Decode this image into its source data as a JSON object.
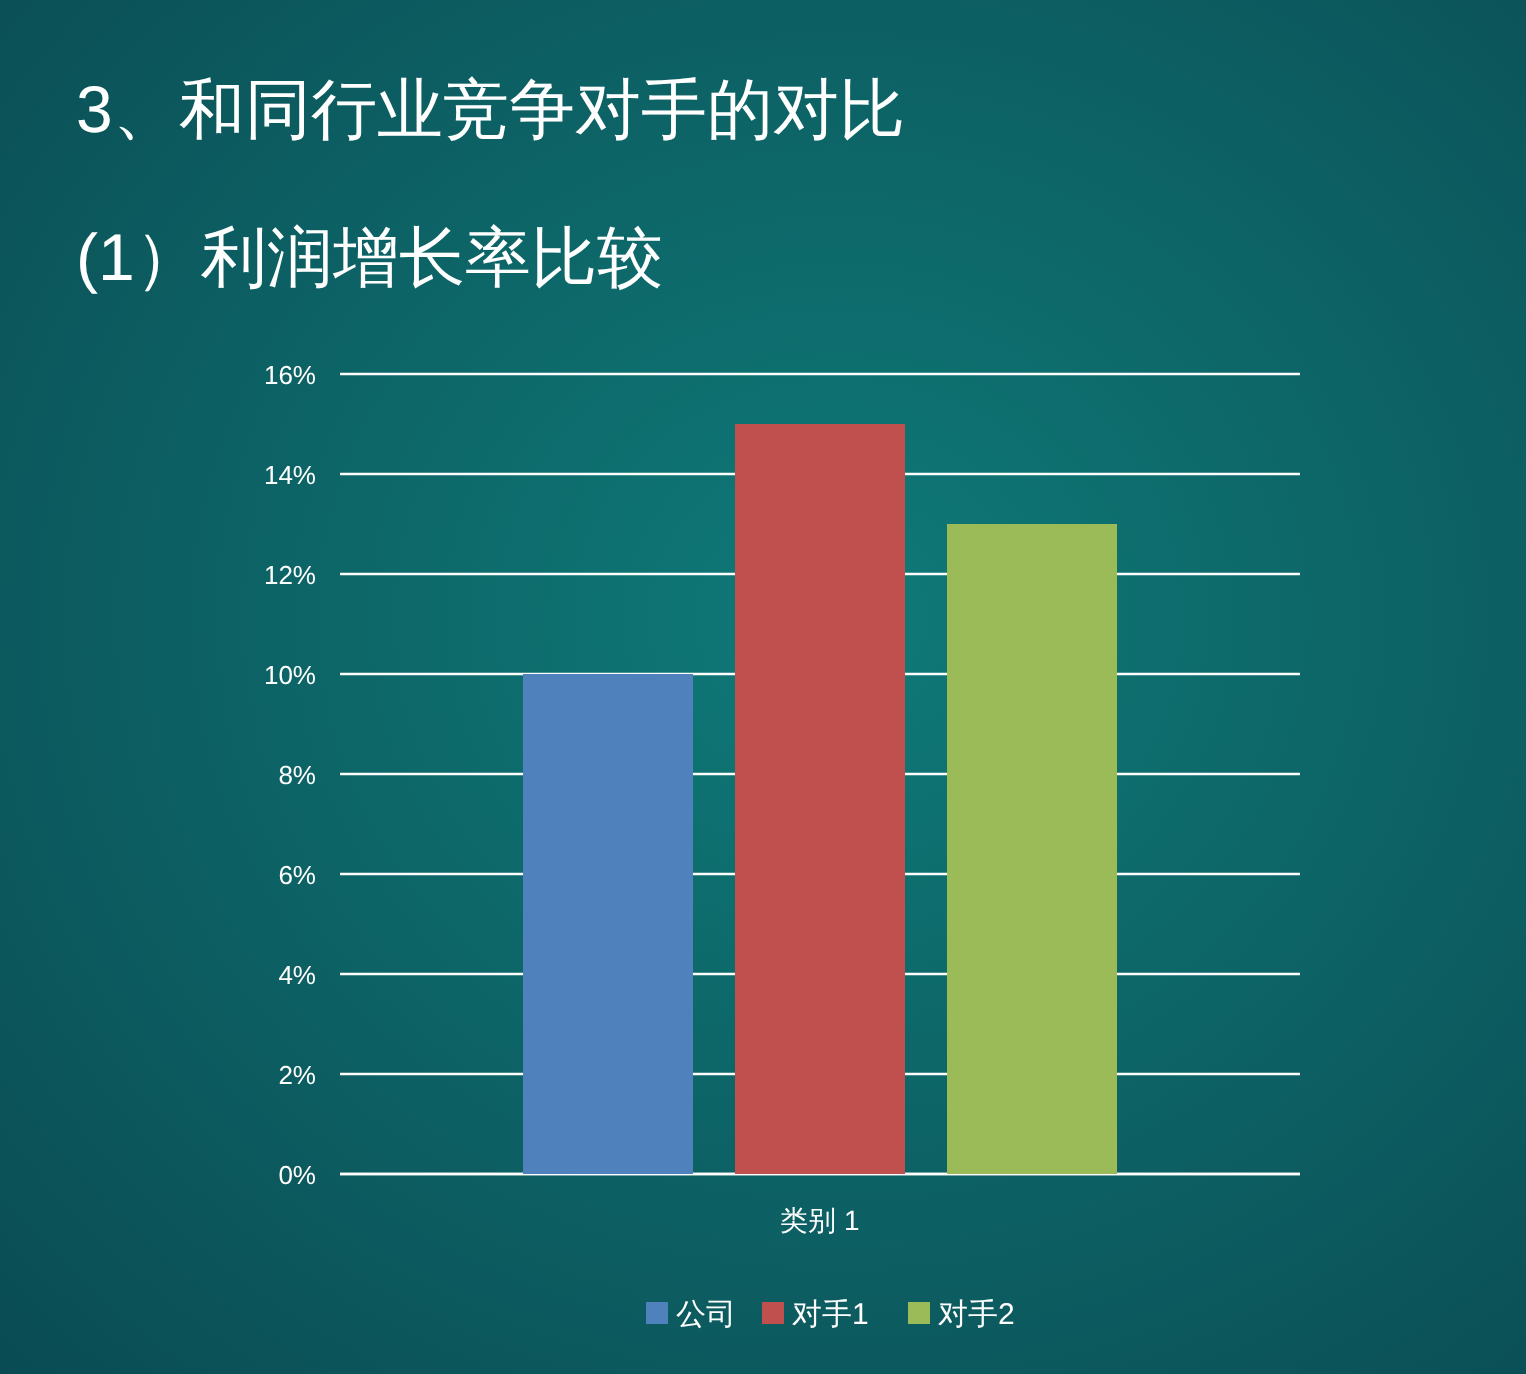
{
  "chart_data": {
    "type": "bar",
    "title": "3、和同行业竞争对手的对比",
    "subtitle": "(1）利润增长率比较",
    "categories": [
      "类别 1"
    ],
    "series": [
      {
        "name": "公司",
        "color": "#4f81bd",
        "values": [
          10
        ]
      },
      {
        "name": "对手1",
        "color": "#c0504d",
        "values": [
          15
        ]
      },
      {
        "name": "对手2",
        "color": "#9bbb59",
        "values": [
          13
        ]
      }
    ],
    "ylim": [
      0,
      16
    ],
    "yticks": [
      {
        "value": 0,
        "label": "0%"
      },
      {
        "value": 2,
        "label": "2%"
      },
      {
        "value": 4,
        "label": "4%"
      },
      {
        "value": 6,
        "label": "6%"
      },
      {
        "value": 8,
        "label": "8%"
      },
      {
        "value": 10,
        "label": "10%"
      },
      {
        "value": 12,
        "label": "12%"
      },
      {
        "value": 14,
        "label": "14%"
      },
      {
        "value": 16,
        "label": "16%"
      }
    ],
    "grid": "y",
    "legend": "bottom"
  }
}
